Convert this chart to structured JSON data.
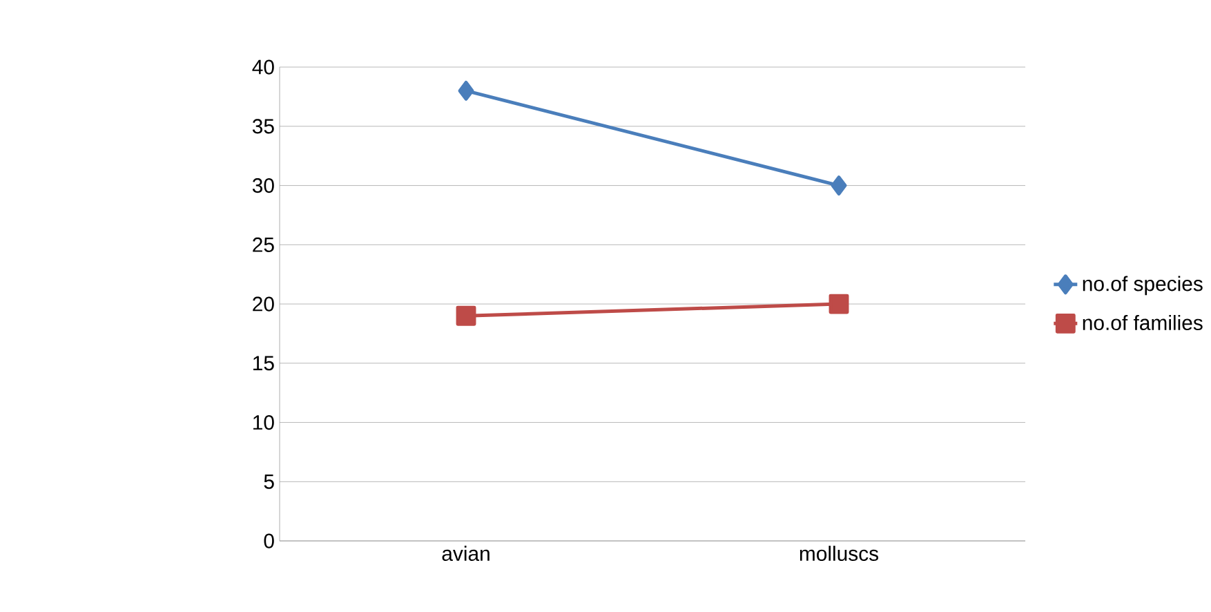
{
  "chart_data": {
    "type": "line",
    "categories": [
      "avian",
      "molluscs"
    ],
    "series": [
      {
        "name": "no.of species",
        "color": "#4a7ebb",
        "marker": "diamond",
        "values": [
          38,
          30
        ]
      },
      {
        "name": "no.of families",
        "color": "#be4b48",
        "marker": "square",
        "values": [
          19,
          20
        ]
      }
    ],
    "ylim": [
      0,
      40
    ],
    "yticks": [
      0,
      5,
      10,
      15,
      20,
      25,
      30,
      35,
      40
    ],
    "grid": "y",
    "legend": "right",
    "line_style": "solid"
  }
}
